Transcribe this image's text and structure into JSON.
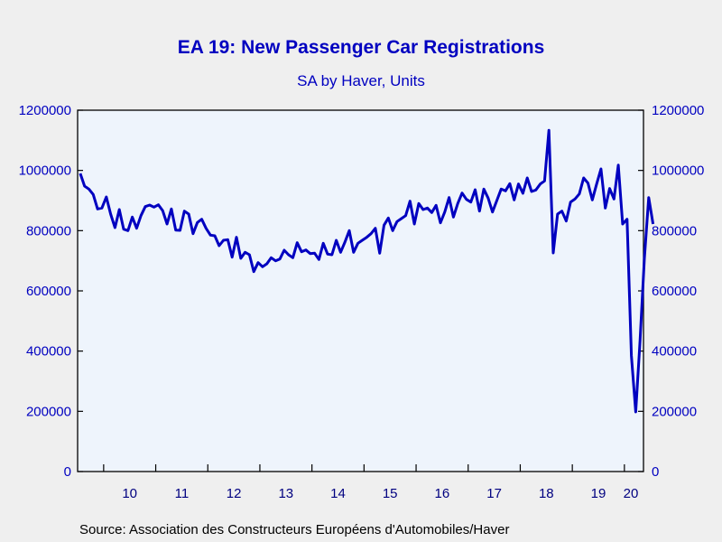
{
  "chart_data": {
    "type": "line",
    "title": "EA 19: New Passenger Car Registrations",
    "subtitle": "SA by Haver, Units",
    "source": "Source:  Association des Constructeurs Européens d'Automobiles/Haver",
    "ylim": [
      0,
      1200000
    ],
    "yticks": [
      "1200000",
      "1000000",
      "800000",
      "600000",
      "400000",
      "200000",
      "0"
    ],
    "ytick_values": [
      1200000,
      1000000,
      800000,
      600000,
      400000,
      200000,
      0
    ],
    "xticks": [
      "10",
      "11",
      "12",
      "13",
      "14",
      "15",
      "16",
      "17",
      "18",
      "19",
      "20"
    ],
    "x_start": "2009-07",
    "grid": false,
    "colors": {
      "line": "#0000c0",
      "plot_bg": "#eef4fc",
      "axis": "#000000",
      "text": "#0000c0"
    },
    "series": [
      {
        "values": [
          990000,
          948000,
          938000,
          920000,
          872000,
          875000,
          912000,
          855000,
          810000,
          870000,
          805000,
          800000,
          845000,
          808000,
          850000,
          880000,
          885000,
          878000,
          886000,
          866000,
          822000,
          872000,
          802000,
          801000,
          865000,
          855000,
          790000,
          827000,
          838000,
          808000,
          785000,
          783000,
          750000,
          768000,
          770000,
          712000,
          778000,
          708000,
          728000,
          720000,
          664000,
          694000,
          680000,
          690000,
          710000,
          700000,
          706000,
          735000,
          720000,
          710000,
          760000,
          730000,
          736000,
          724000,
          725000,
          704000,
          758000,
          722000,
          720000,
          768000,
          728000,
          762000,
          800000,
          728000,
          758000,
          768000,
          778000,
          790000,
          808000,
          725000,
          818000,
          842000,
          800000,
          830000,
          840000,
          850000,
          898000,
          822000,
          890000,
          870000,
          875000,
          860000,
          884000,
          826000,
          862000,
          910000,
          845000,
          890000,
          925000,
          904000,
          895000,
          936000,
          865000,
          938000,
          908000,
          862000,
          900000,
          938000,
          932000,
          956000,
          902000,
          955000,
          924000,
          975000,
          930000,
          935000,
          955000,
          965000,
          1133000,
          726000,
          855000,
          865000,
          832000,
          895000,
          905000,
          922000,
          975000,
          958000,
          902000,
          955000,
          1005000,
          875000,
          940000,
          905000,
          1018000,
          822000,
          838000,
          385000,
          198000,
          435000,
          708000,
          910000,
          822000
        ]
      }
    ]
  }
}
